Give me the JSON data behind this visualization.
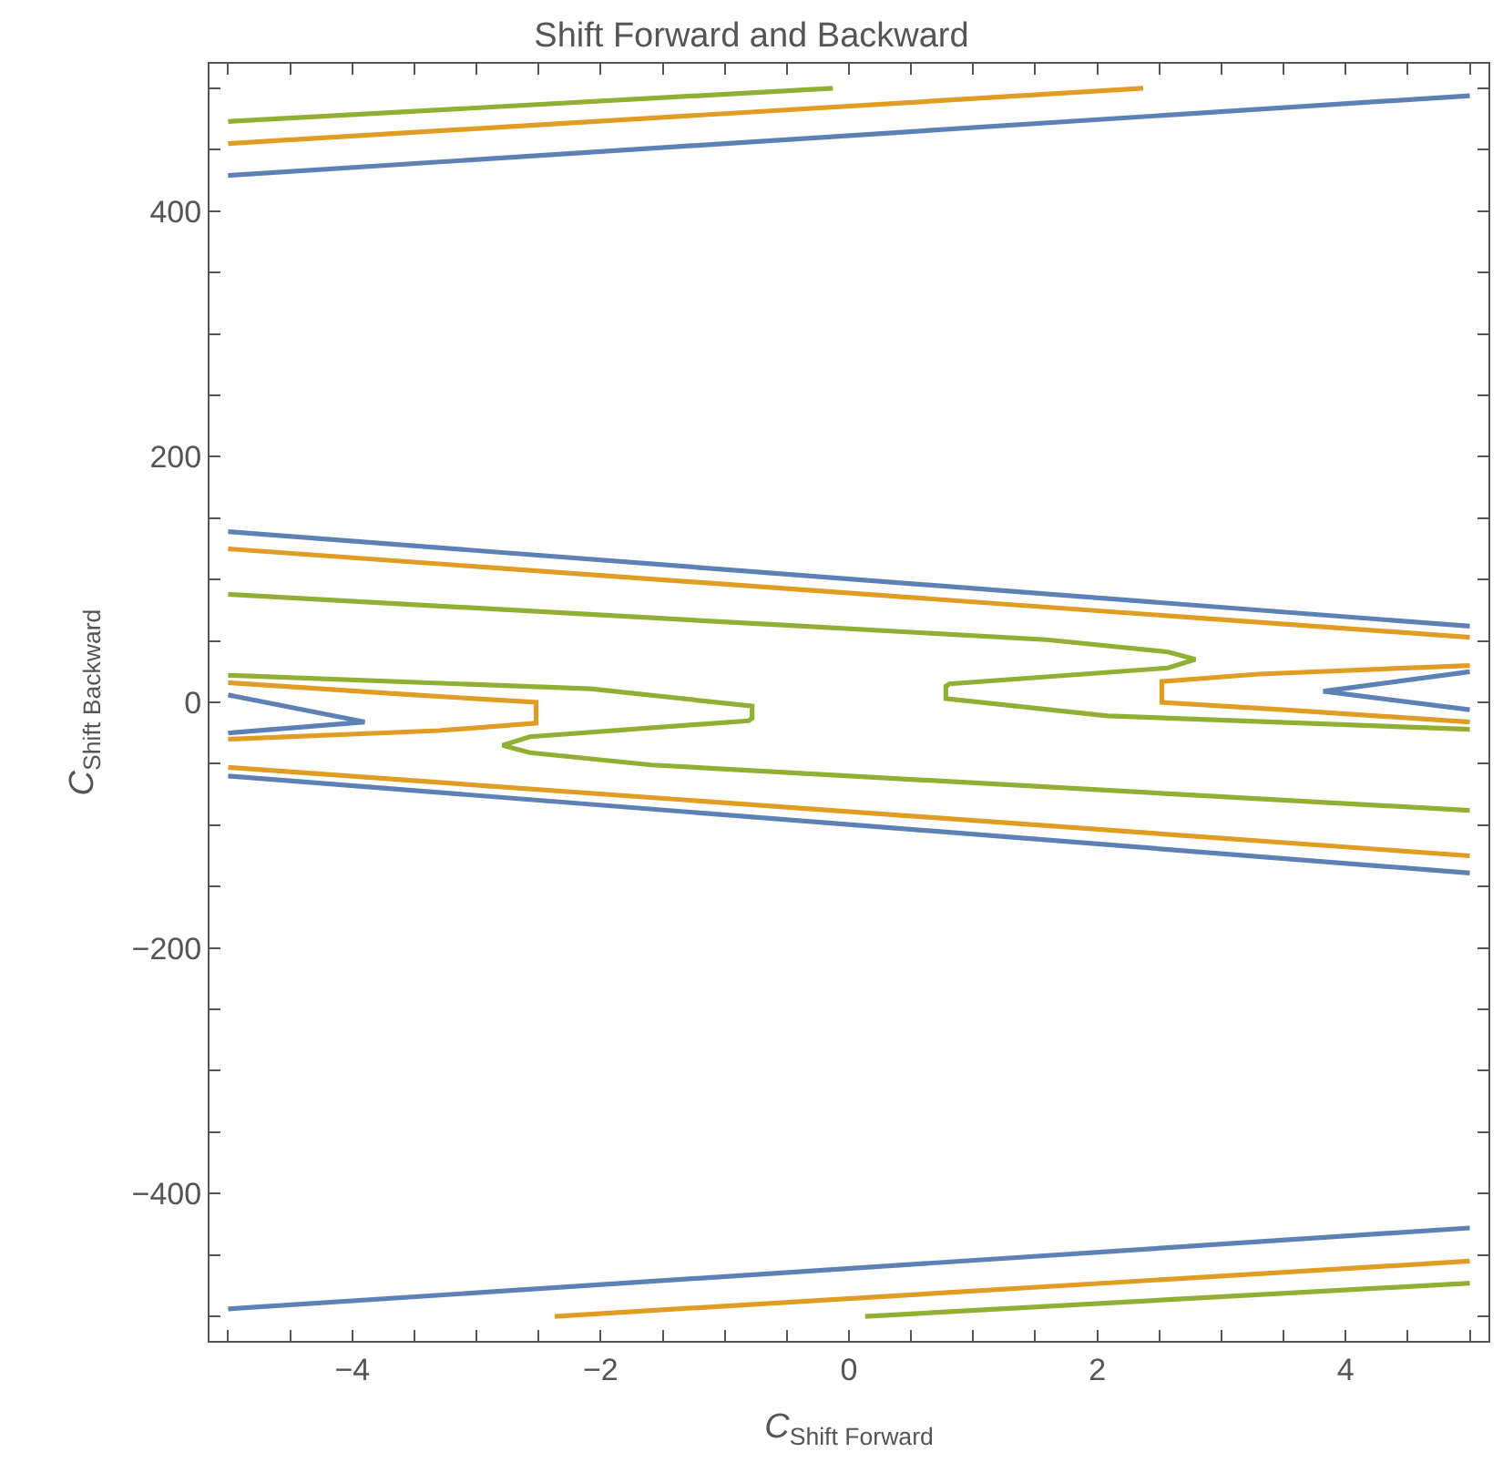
{
  "chart_data": {
    "type": "line",
    "title": "Shift Forward and Backward",
    "xlabel": "C$_{Shift Forward}$",
    "ylabel": "C$_{Shift Backward}$",
    "xlim": [
      -5.15,
      5.15
    ],
    "ylim": [
      -520,
      520
    ],
    "xticks": [
      {
        "value": -5,
        "label": null
      },
      {
        "value": -4.5,
        "label": null
      },
      {
        "value": -4,
        "label": "−4"
      },
      {
        "value": -3.5,
        "label": null
      },
      {
        "value": -3,
        "label": null
      },
      {
        "value": -2.5,
        "label": null
      },
      {
        "value": -2,
        "label": "−2"
      },
      {
        "value": -1.5,
        "label": null
      },
      {
        "value": -1,
        "label": null
      },
      {
        "value": -0.5,
        "label": null
      },
      0,
      {
        "value": 0.5,
        "label": null
      },
      {
        "value": 1,
        "label": null
      },
      {
        "value": 1.5,
        "label": null
      },
      2,
      {
        "value": 2.5,
        "label": null
      },
      {
        "value": 3,
        "label": null
      },
      {
        "value": 3.5,
        "label": null
      },
      4,
      {
        "value": 4.5,
        "label": null
      },
      {
        "value": 5,
        "label": null
      }
    ],
    "yticks": [
      {
        "value": -500,
        "label": null
      },
      {
        "value": -450,
        "label": null
      },
      {
        "value": -400,
        "label": "−400"
      },
      {
        "value": -350,
        "label": null
      },
      {
        "value": -300,
        "label": null
      },
      {
        "value": -250,
        "label": null
      },
      {
        "value": -200,
        "label": "−200"
      },
      {
        "value": -150,
        "label": null
      },
      {
        "value": -100,
        "label": null
      },
      {
        "value": -50,
        "label": null
      },
      0,
      {
        "value": 50,
        "label": null
      },
      {
        "value": 100,
        "label": null
      },
      {
        "value": 150,
        "label": null
      },
      200,
      {
        "value": 250,
        "label": null
      },
      {
        "value": 300,
        "label": null
      },
      {
        "value": 350,
        "label": null
      },
      400,
      {
        "value": 450,
        "label": null
      },
      {
        "value": 500,
        "label": null
      }
    ],
    "grid": false,
    "marker": "none",
    "line_style": "solid",
    "series": [
      {
        "color": "#5e81b5",
        "x": [
          -5,
          5
        ],
        "values": [
          429,
          494
        ]
      },
      {
        "color": "#5e81b5",
        "x": [
          -5,
          5
        ],
        "values": [
          139,
          62
        ]
      },
      {
        "color": "#5e81b5",
        "x": [
          5,
          3.82,
          5
        ],
        "values": [
          25,
          9,
          -6
        ]
      },
      {
        "color": "#5e81b5",
        "x": [
          -5,
          -3.9,
          -5
        ],
        "values": [
          6,
          -16,
          -25
        ]
      },
      {
        "color": "#5e81b5",
        "x": [
          -5,
          5
        ],
        "values": [
          -60,
          -139
        ]
      },
      {
        "color": "#5e81b5",
        "x": [
          -5,
          5
        ],
        "values": [
          -494,
          -428
        ]
      },
      {
        "color": "#e19c24",
        "x": [
          -5,
          2.37
        ],
        "values": [
          455,
          500
        ]
      },
      {
        "color": "#e19c24",
        "x": [
          -5,
          5
        ],
        "values": [
          125,
          53
        ]
      },
      {
        "color": "#e19c24",
        "x": [
          5,
          3.3,
          2.52,
          2.52,
          3.5,
          5
        ],
        "values": [
          30,
          23,
          17,
          0,
          -6,
          -16
        ]
      },
      {
        "color": "#e19c24",
        "x": [
          -5,
          -3.5,
          -2.52,
          -2.52,
          -3.3,
          -5
        ],
        "values": [
          16,
          6,
          0,
          -17,
          -23,
          -30
        ]
      },
      {
        "color": "#e19c24",
        "x": [
          -5,
          5
        ],
        "values": [
          -53,
          -125
        ]
      },
      {
        "color": "#e19c24",
        "x": [
          -2.37,
          5
        ],
        "values": [
          -500,
          -455
        ]
      },
      {
        "color": "#8fb032",
        "x": [
          -5,
          -0.13
        ],
        "values": [
          473,
          500
        ]
      },
      {
        "color": "#8fb032",
        "x": [
          -5,
          -0.37,
          1.59,
          2.57,
          2.79,
          2.57,
          0.81,
          0.78,
          0.78,
          2.08,
          5
        ],
        "values": [
          88,
          62,
          51,
          41,
          35,
          28,
          15,
          13,
          3,
          -11,
          -22
        ]
      },
      {
        "color": "#8fb032",
        "x": [
          5,
          0.37,
          -1.59,
          -2.57,
          -2.79,
          -2.57,
          -0.81,
          -0.78,
          -0.78,
          -2.08,
          -5
        ],
        "values": [
          -88,
          -62,
          -51,
          -41,
          -35,
          -28,
          -15,
          -13,
          -3,
          11,
          22
        ]
      },
      {
        "color": "#8fb032",
        "x": [
          0.13,
          5
        ],
        "values": [
          -500,
          -473
        ]
      }
    ]
  }
}
